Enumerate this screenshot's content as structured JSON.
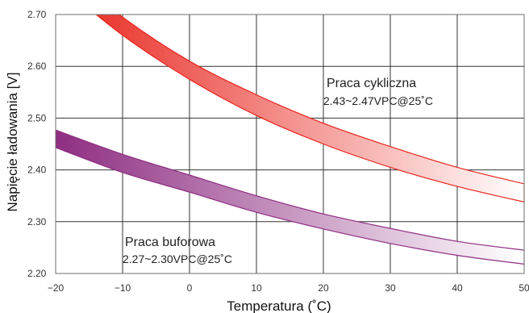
{
  "chart_data": {
    "type": "area",
    "xlabel": "Temperatura (˚C)",
    "ylabel": "Napięcie ładowania [V]",
    "xlim": [
      -20,
      50
    ],
    "ylim": [
      2.2,
      2.7
    ],
    "x_ticks": [
      "−20",
      "−10",
      "0",
      "10",
      "20",
      "30",
      "40",
      "50"
    ],
    "y_ticks": [
      "2.20",
      "2.30",
      "2.40",
      "2.50",
      "2.60",
      "2.70"
    ],
    "grid": true,
    "legend": "none",
    "series": [
      {
        "name": "Praca cykliczna",
        "note": "2.43~2.47VPC@25˚C",
        "color_start": "#e8241c",
        "color_end": "#ffffff",
        "x": [
          -20,
          -10,
          0,
          10,
          20,
          30,
          40,
          50
        ],
        "lower": [
          2.765,
          2.66,
          2.575,
          2.505,
          2.45,
          2.405,
          2.368,
          2.338
        ],
        "upper": [
          2.8,
          2.695,
          2.61,
          2.545,
          2.49,
          2.445,
          2.405,
          2.373
        ]
      },
      {
        "name": "Praca buforowa",
        "note": "2.27~2.30VPC@25˚C",
        "color_start": "#8e2e82",
        "color_end": "#ffffff",
        "x": [
          -20,
          -10,
          0,
          10,
          20,
          30,
          40,
          50
        ],
        "lower": [
          2.443,
          2.395,
          2.357,
          2.318,
          2.286,
          2.258,
          2.235,
          2.218
        ],
        "upper": [
          2.477,
          2.43,
          2.39,
          2.35,
          2.315,
          2.287,
          2.262,
          2.245
        ]
      }
    ]
  }
}
